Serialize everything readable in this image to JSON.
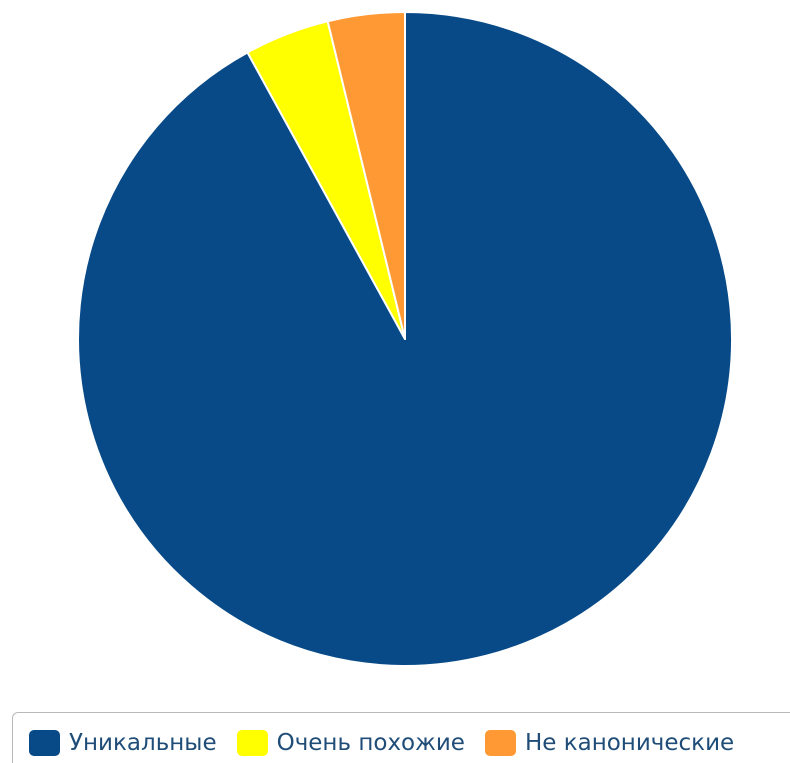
{
  "chart_data": {
    "type": "pie",
    "start_angle": "top",
    "direction": "clockwise",
    "slices": [
      {
        "label": "Уникальные",
        "value": 92.0,
        "color": "#084a87"
      },
      {
        "label": "Очень похожие",
        "value": 4.2,
        "color": "#ffff00"
      },
      {
        "label": "Не канонические",
        "value": 3.8,
        "color": "#ff9933"
      }
    ],
    "legend_position": "bottom"
  }
}
